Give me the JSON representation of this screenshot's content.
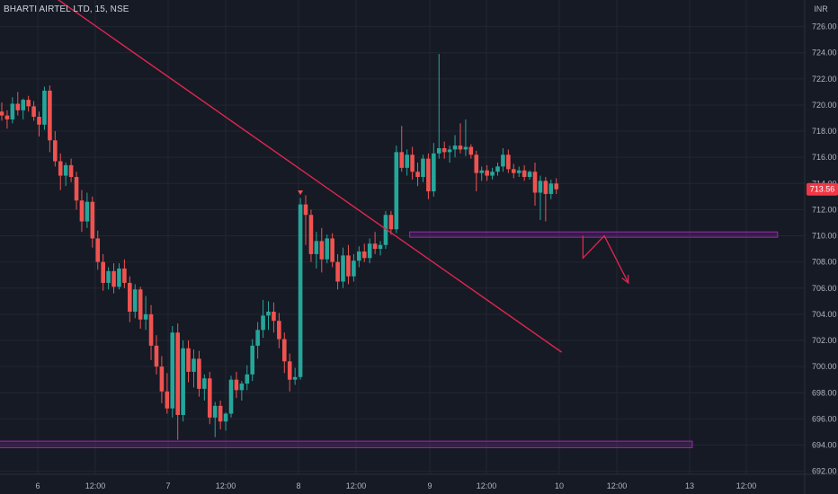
{
  "header": {
    "symbol_title": "BHARTI AIRTEL LTD, 15, NSE"
  },
  "price_axis": {
    "currency": "INR",
    "last_price_label": "713.56"
  },
  "colors": {
    "background": "#161a25",
    "grid": "#222632",
    "up": "#26a69a",
    "down": "#ef5350",
    "trendline": "#e0264f",
    "zone": "#9c27b0",
    "arrow": "#e0264f",
    "last_price_bg": "#f23645"
  },
  "chart_data": {
    "type": "candlestick",
    "title": "BHARTI AIRTEL LTD, 15, NSE",
    "ylabel": "INR",
    "ylim": [
      691,
      727
    ],
    "y_ticks": [
      692,
      694,
      696,
      698,
      700,
      702,
      704,
      706,
      708,
      710,
      712,
      714,
      716,
      718,
      720,
      722,
      724,
      726
    ],
    "x_tick_labels": [
      "6",
      "12:00",
      "7",
      "12:00",
      "8",
      "12:00",
      "9",
      "12:00",
      "10",
      "12:00",
      "13",
      "12:00"
    ],
    "last_price": 713.56,
    "candles": [
      [
        719.5,
        720.2,
        718.8,
        719.2
      ],
      [
        719.2,
        719.6,
        718.2,
        718.9
      ],
      [
        718.9,
        720.6,
        718.6,
        720.1
      ],
      [
        720.1,
        721.0,
        719.2,
        719.6
      ],
      [
        719.6,
        720.5,
        718.9,
        720.4
      ],
      [
        720.4,
        720.7,
        719.5,
        719.9
      ],
      [
        719.9,
        720.3,
        718.8,
        719.1
      ],
      [
        719.1,
        719.5,
        717.6,
        718.5
      ],
      [
        718.5,
        721.4,
        718.1,
        721.1
      ],
      [
        721.1,
        721.5,
        716.4,
        717.3
      ],
      [
        717.3,
        718.0,
        715.3,
        715.7
      ],
      [
        715.7,
        716.3,
        713.5,
        714.6
      ],
      [
        714.6,
        715.6,
        713.8,
        715.4
      ],
      [
        715.4,
        715.9,
        714.1,
        714.5
      ],
      [
        714.5,
        714.9,
        712.0,
        712.7
      ],
      [
        712.7,
        713.5,
        710.3,
        711.1
      ],
      [
        711.1,
        713.3,
        710.6,
        712.6
      ],
      [
        712.6,
        713.0,
        709.1,
        709.8
      ],
      [
        709.8,
        710.4,
        707.4,
        708.0
      ],
      [
        708.0,
        708.6,
        705.8,
        706.4
      ],
      [
        706.4,
        707.6,
        705.9,
        707.3
      ],
      [
        707.3,
        707.9,
        705.6,
        706.1
      ],
      [
        706.1,
        707.9,
        705.9,
        707.5
      ],
      [
        707.5,
        708.2,
        706.0,
        706.4
      ],
      [
        706.4,
        706.9,
        703.4,
        704.2
      ],
      [
        704.2,
        706.3,
        703.7,
        705.9
      ],
      [
        705.9,
        706.1,
        702.9,
        703.6
      ],
      [
        703.6,
        705.4,
        702.8,
        704.0
      ],
      [
        704.0,
        704.7,
        700.5,
        701.6
      ],
      [
        701.6,
        702.4,
        699.4,
        700.0
      ],
      [
        700.0,
        700.8,
        697.2,
        698.1
      ],
      [
        698.1,
        699.5,
        696.4,
        696.8
      ],
      [
        696.8,
        703.1,
        696.1,
        702.6
      ],
      [
        702.6,
        703.3,
        694.4,
        696.3
      ],
      [
        696.3,
        702.0,
        695.8,
        701.4
      ],
      [
        701.4,
        702.0,
        698.8,
        699.6
      ],
      [
        699.6,
        701.3,
        698.4,
        700.6
      ],
      [
        700.6,
        701.2,
        697.7,
        698.3
      ],
      [
        698.3,
        699.4,
        697.4,
        699.1
      ],
      [
        699.1,
        699.6,
        695.6,
        696.1
      ],
      [
        696.1,
        697.3,
        694.6,
        697.0
      ],
      [
        697.0,
        697.4,
        695.2,
        695.8
      ],
      [
        695.8,
        696.5,
        695.1,
        696.4
      ],
      [
        696.4,
        699.3,
        696.1,
        699.0
      ],
      [
        699.0,
        699.6,
        697.6,
        698.2
      ],
      [
        698.2,
        698.9,
        697.4,
        698.7
      ],
      [
        698.7,
        700.1,
        698.2,
        699.4
      ],
      [
        699.4,
        702.1,
        698.9,
        701.6
      ],
      [
        701.6,
        703.4,
        700.6,
        702.8
      ],
      [
        702.8,
        705.1,
        702.2,
        703.9
      ],
      [
        703.9,
        705.0,
        702.8,
        704.2
      ],
      [
        704.2,
        704.9,
        702.6,
        703.5
      ],
      [
        703.5,
        704.1,
        701.4,
        702.1
      ],
      [
        702.1,
        702.6,
        699.5,
        700.4
      ],
      [
        700.4,
        701.0,
        698.1,
        699.0
      ],
      [
        699.0,
        699.9,
        698.6,
        699.2
      ],
      [
        699.2,
        712.9,
        699.0,
        712.4
      ],
      [
        712.4,
        713.1,
        709.3,
        711.6
      ],
      [
        711.6,
        712.0,
        708.0,
        708.6
      ],
      [
        708.6,
        710.3,
        707.5,
        709.6
      ],
      [
        709.6,
        710.6,
        707.2,
        708.2
      ],
      [
        708.2,
        710.1,
        707.9,
        709.8
      ],
      [
        709.8,
        710.2,
        707.6,
        708.0
      ],
      [
        708.0,
        708.6,
        705.9,
        706.5
      ],
      [
        706.5,
        709.1,
        706.0,
        708.5
      ],
      [
        708.5,
        709.3,
        706.3,
        706.9
      ],
      [
        706.9,
        708.6,
        706.5,
        708.1
      ],
      [
        708.1,
        709.2,
        707.6,
        708.8
      ],
      [
        708.8,
        709.4,
        708.0,
        708.3
      ],
      [
        708.3,
        709.8,
        707.9,
        709.4
      ],
      [
        709.4,
        710.3,
        708.6,
        709.0
      ],
      [
        709.0,
        709.6,
        708.5,
        709.3
      ],
      [
        709.3,
        711.9,
        709.0,
        711.6
      ],
      [
        711.6,
        711.9,
        710.1,
        710.5
      ],
      [
        710.5,
        716.9,
        710.2,
        716.4
      ],
      [
        716.4,
        718.4,
        714.9,
        715.2
      ],
      [
        715.2,
        716.6,
        714.6,
        716.2
      ],
      [
        716.2,
        716.8,
        714.3,
        714.9
      ],
      [
        714.9,
        715.6,
        713.8,
        714.5
      ],
      [
        714.5,
        716.2,
        714.1,
        715.9
      ],
      [
        715.9,
        716.3,
        712.8,
        713.4
      ],
      [
        713.4,
        717.1,
        713.0,
        716.3
      ],
      [
        716.3,
        723.9,
        715.9,
        716.7
      ],
      [
        716.7,
        717.2,
        715.9,
        716.4
      ],
      [
        716.4,
        716.9,
        715.6,
        716.6
      ],
      [
        716.6,
        717.7,
        716.0,
        716.9
      ],
      [
        716.9,
        718.6,
        716.3,
        716.6
      ],
      [
        716.6,
        718.9,
        716.1,
        716.8
      ],
      [
        716.8,
        717.0,
        715.9,
        716.2
      ],
      [
        716.2,
        716.5,
        713.4,
        714.8
      ],
      [
        714.8,
        715.3,
        714.2,
        715.0
      ],
      [
        715.0,
        715.4,
        714.2,
        714.6
      ],
      [
        714.6,
        715.2,
        714.3,
        714.9
      ],
      [
        714.9,
        715.6,
        714.6,
        715.3
      ],
      [
        715.3,
        716.7,
        714.9,
        716.2
      ],
      [
        716.2,
        716.6,
        714.8,
        715.1
      ],
      [
        715.1,
        715.5,
        714.4,
        714.8
      ],
      [
        714.8,
        715.3,
        714.5,
        715.0
      ],
      [
        715.0,
        715.4,
        714.2,
        714.5
      ],
      [
        714.5,
        715.0,
        714.3,
        714.9
      ],
      [
        714.9,
        715.6,
        712.3,
        713.3
      ],
      [
        713.3,
        714.6,
        711.2,
        714.2
      ],
      [
        714.2,
        714.5,
        711.1,
        713.2
      ],
      [
        713.2,
        714.3,
        712.8,
        714.0
      ],
      [
        714.0,
        714.4,
        713.2,
        713.56
      ]
    ]
  },
  "drawings": {
    "trendline": {
      "start": {
        "x": 2.0,
        "y": 730.5
      },
      "end": {
        "x": 105.0,
        "y": 701.1
      }
    },
    "resistance_zone": {
      "x_start": 76.5,
      "x_end": 145.5,
      "y_low": 709.9,
      "y_high": 710.3
    },
    "support_zone": {
      "x_start": -8.0,
      "x_end": 129.5,
      "y_low": 693.8,
      "y_high": 694.3
    },
    "projection_arrow": [
      {
        "x": 109.0,
        "y": 710.0
      },
      {
        "x": 109.0,
        "y": 708.3
      },
      {
        "x": 113.0,
        "y": 710.0
      },
      {
        "x": 117.5,
        "y": 706.4
      }
    ],
    "signal_marker": {
      "x": 56.0,
      "y": 713.2
    }
  }
}
